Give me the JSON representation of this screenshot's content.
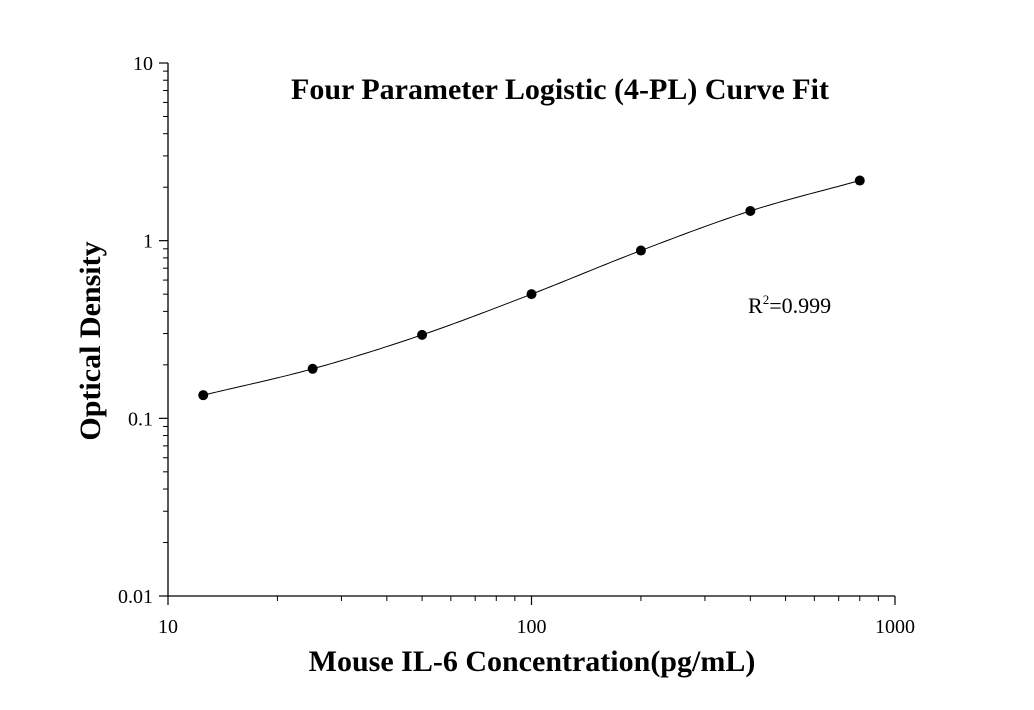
{
  "chart_data": {
    "type": "scatter",
    "title": "Four Parameter Logistic (4-PL) Curve Fit",
    "xlabel": "Mouse IL-6 Concentration(pg/mL)",
    "ylabel": "Optical Density",
    "x_scale": "log",
    "y_scale": "log",
    "xlim": [
      10,
      1000
    ],
    "ylim": [
      0.01,
      10
    ],
    "x_ticks": [
      {
        "value": 10,
        "label": "10"
      },
      {
        "value": 100,
        "label": "100"
      },
      {
        "value": 1000,
        "label": "1000"
      }
    ],
    "y_ticks": [
      {
        "value": 0.01,
        "label": "0.01"
      },
      {
        "value": 0.1,
        "label": "0.1"
      },
      {
        "value": 1,
        "label": "1"
      },
      {
        "value": 10,
        "label": "10"
      }
    ],
    "grid": false,
    "legend": "none",
    "series": [
      {
        "x": [
          12.5,
          25,
          50,
          100,
          200,
          400,
          800
        ],
        "y": [
          0.135,
          0.19,
          0.295,
          0.5,
          0.88,
          1.47,
          2.18
        ],
        "marker": "filled-circle",
        "color": "#000000"
      }
    ],
    "fit_curve": {
      "model": "4-PL",
      "color": "#000000"
    },
    "annotations": [
      {
        "base": "R",
        "superscript": "2",
        "rest": "=0.999",
        "position": "right-middle"
      }
    ]
  }
}
